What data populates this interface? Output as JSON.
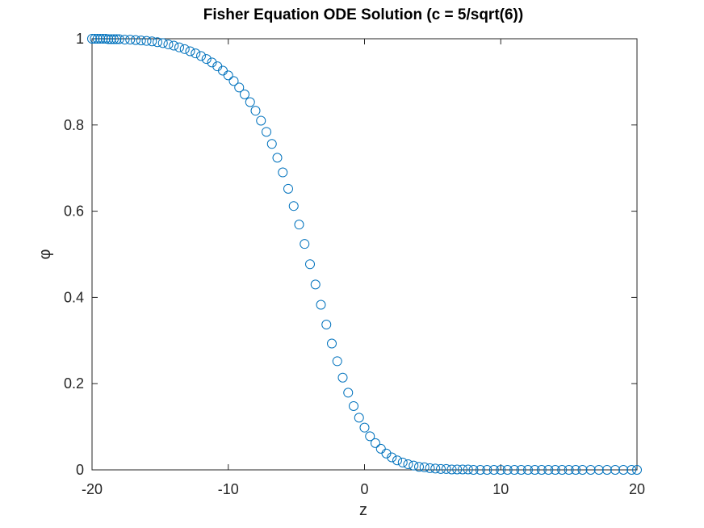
{
  "chart_data": {
    "type": "scatter",
    "title": "Fisher Equation ODE Solution (c = 5/sqrt(6))",
    "xlabel": "z",
    "ylabel": "φ",
    "xlim": [
      -20,
      20
    ],
    "ylim": [
      0,
      1
    ],
    "xticks": [
      -20,
      -10,
      0,
      10,
      20
    ],
    "yticks": [
      0,
      0.2,
      0.4,
      0.6,
      0.8,
      1
    ],
    "xtick_labels": [
      "-20",
      "-10",
      "0",
      "10",
      "20"
    ],
    "ytick_labels": [
      "0",
      "0.2",
      "0.4",
      "0.6",
      "0.8",
      "1"
    ],
    "grid": false,
    "marker": "open-circle",
    "color": "#0072BD",
    "series": [
      {
        "x": [
          -20.0,
          -19.8,
          -19.6,
          -19.4,
          -19.2,
          -19.0,
          -18.8,
          -18.6,
          -18.4,
          -18.2,
          -18.0,
          -17.6,
          -17.2,
          -16.8,
          -16.4,
          -16.0,
          -15.6,
          -15.2,
          -14.8,
          -14.4,
          -14.0,
          -13.6,
          -13.2,
          -12.8,
          -12.4,
          -12.0,
          -11.6,
          -11.2,
          -10.8,
          -10.4,
          -10.0,
          -9.6,
          -9.2,
          -8.8,
          -8.4,
          -8.0,
          -7.6,
          -7.2,
          -6.8,
          -6.4,
          -6.0,
          -5.6,
          -5.2,
          -4.8,
          -4.4,
          -4.0,
          -3.6,
          -3.2,
          -2.8,
          -2.4,
          -2.0,
          -1.6,
          -1.2,
          -0.8,
          -0.4,
          0.0,
          0.4,
          0.8,
          1.2,
          1.6,
          2.0,
          2.4,
          2.8,
          3.2,
          3.6,
          4.0,
          4.4,
          4.8,
          5.2,
          5.6,
          6.0,
          6.4,
          6.8,
          7.2,
          7.6,
          8.0,
          8.5,
          9.0,
          9.5,
          10.0,
          10.5,
          11.0,
          11.5,
          12.0,
          12.5,
          13.0,
          13.5,
          14.0,
          14.5,
          15.0,
          15.5,
          16.0,
          16.6,
          17.2,
          17.8,
          18.4,
          19.0,
          19.6,
          20.0
        ],
        "y": [
          1.0,
          1.0,
          1.0,
          1.0,
          1.0,
          1.0,
          0.999,
          0.999,
          0.999,
          0.999,
          0.999,
          0.998,
          0.998,
          0.997,
          0.996,
          0.995,
          0.994,
          0.992,
          0.99,
          0.987,
          0.984,
          0.98,
          0.976,
          0.971,
          0.966,
          0.96,
          0.953,
          0.945,
          0.936,
          0.926,
          0.915,
          0.902,
          0.887,
          0.871,
          0.853,
          0.833,
          0.81,
          0.784,
          0.756,
          0.724,
          0.69,
          0.652,
          0.612,
          0.569,
          0.524,
          0.477,
          0.43,
          0.383,
          0.337,
          0.293,
          0.252,
          0.214,
          0.179,
          0.148,
          0.121,
          0.098,
          0.078,
          0.062,
          0.049,
          0.038,
          0.029,
          0.022,
          0.017,
          0.013,
          0.01,
          0.007,
          0.006,
          0.004,
          0.003,
          0.002,
          0.002,
          0.001,
          0.001,
          0.001,
          0.001,
          0.0,
          0.0,
          0.0,
          0.0,
          0.0,
          0.0,
          0.0,
          0.0,
          0.0,
          0.0,
          0.0,
          0.0,
          0.0,
          0.0,
          0.0,
          0.0,
          0.0,
          0.0,
          0.0,
          0.0,
          0.0,
          0.0,
          0.0,
          0.0
        ]
      }
    ]
  }
}
